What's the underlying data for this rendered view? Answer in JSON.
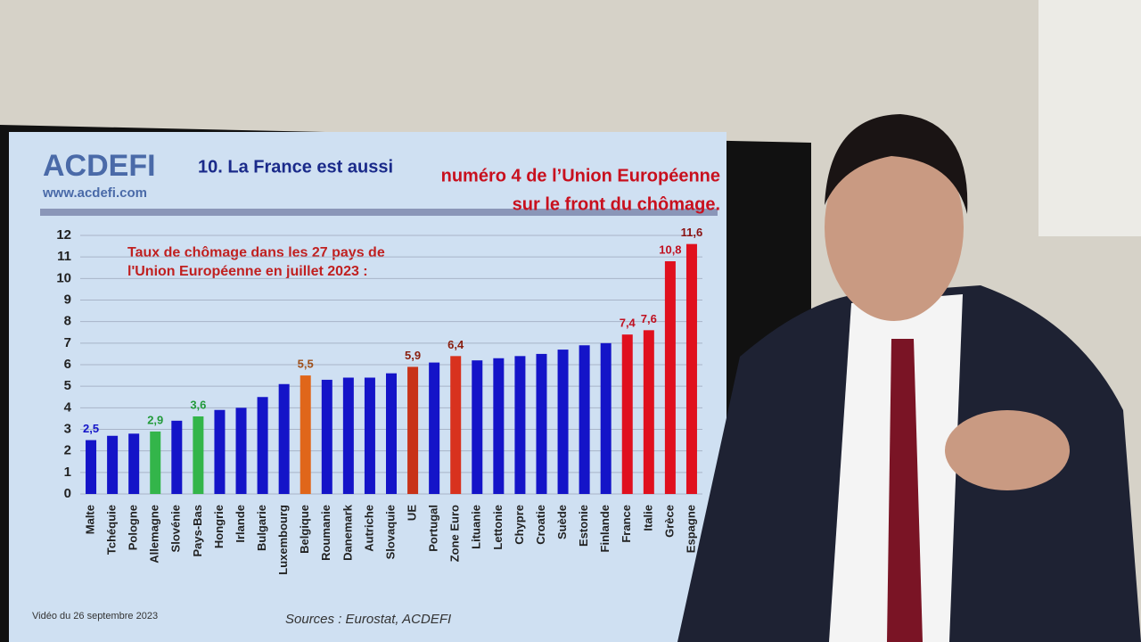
{
  "logo": "ACDEFI",
  "website": "www.acdefi.com",
  "headline": {
    "part1": "10. La France est aussi",
    "part2": "numéro 4 de l’Union Européenne",
    "part3": "sur le front du chômage."
  },
  "footer": {
    "date": "Vidéo du 26 septembre 2023",
    "sources": "Sources : Eurostat, ACDEFI"
  },
  "chart_data": {
    "type": "bar",
    "title": [
      "Taux de chômage dans les 27 pays de",
      "l'Union Européenne en juillet 2023 :"
    ],
    "categories": [
      "Malte",
      "Tchéquie",
      "Pologne",
      "Allemagne",
      "Slovénie",
      "Pays-Bas",
      "Hongrie",
      "Irlande",
      "Bulgarie",
      "Luxembourg",
      "Belgique",
      "Roumanie",
      "Danemark",
      "Autriche",
      "Slovaquie",
      "UE",
      "Portugal",
      "Zone Euro",
      "Lituanie",
      "Lettonie",
      "Chypre",
      "Croatie",
      "Suède",
      "Estonie",
      "Finlande",
      "France",
      "Italie",
      "Grèce",
      "Espagne"
    ],
    "values": [
      2.5,
      2.7,
      2.8,
      2.9,
      3.4,
      3.6,
      3.9,
      4.0,
      4.5,
      5.1,
      5.5,
      5.3,
      5.4,
      5.4,
      5.6,
      5.9,
      6.1,
      6.4,
      6.2,
      6.3,
      6.4,
      6.5,
      6.7,
      6.9,
      7.0,
      7.4,
      7.6,
      10.8,
      11.6
    ],
    "value_labels": [
      "2,5",
      null,
      null,
      "2,9",
      null,
      "3,6",
      null,
      null,
      null,
      null,
      "5,5",
      null,
      null,
      null,
      null,
      "5,9",
      null,
      "6,4",
      null,
      null,
      null,
      null,
      null,
      null,
      null,
      "7,4",
      "7,6",
      "10,8",
      "11,6"
    ],
    "colors": [
      "#1414c8",
      "#1414c8",
      "#1414c8",
      "#33b54a",
      "#1414c8",
      "#33b54a",
      "#1414c8",
      "#1414c8",
      "#1414c8",
      "#1414c8",
      "#e0661a",
      "#1414c8",
      "#1414c8",
      "#1414c8",
      "#1414c8",
      "#c83218",
      "#1414c8",
      "#d8321e",
      "#1414c8",
      "#1414c8",
      "#1414c8",
      "#1414c8",
      "#1414c8",
      "#1414c8",
      "#1414c8",
      "#e0101e",
      "#e0101e",
      "#e0101e",
      "#e0101e"
    ],
    "label_colors": [
      "#1414c8",
      "#1414c8",
      "#1414c8",
      "#229a3a",
      "#1414c8",
      "#229a3a",
      "#1414c8",
      "#1414c8",
      "#1414c8",
      "#1414c8",
      "#a0501a",
      "#1414c8",
      "#1414c8",
      "#1414c8",
      "#1414c8",
      "#8a2010",
      "#1414c8",
      "#8a2010",
      "#1414c8",
      "#1414c8",
      "#1414c8",
      "#1414c8",
      "#1414c8",
      "#1414c8",
      "#1414c8",
      "#c01020",
      "#c01020",
      "#c01020",
      "#8a1010"
    ],
    "ylim": [
      0,
      12
    ],
    "yticks": [
      0,
      1,
      2,
      3,
      4,
      5,
      6,
      7,
      8,
      9,
      10,
      11,
      12
    ],
    "grid": true
  }
}
